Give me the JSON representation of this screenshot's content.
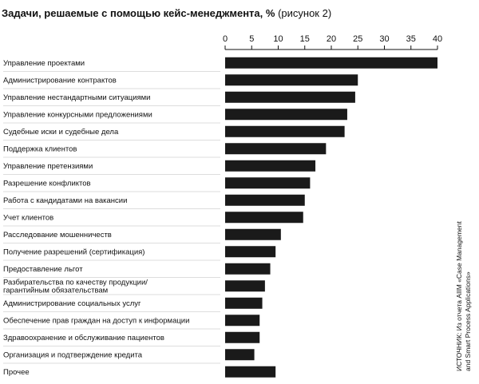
{
  "chart_data": {
    "type": "bar",
    "orientation": "horizontal",
    "title": "Задачи, решаемые с помощью кейс-менеджмента, %",
    "subtitle": "(рисунок 2)",
    "xlim": [
      0,
      40
    ],
    "ticks": [
      0,
      5,
      10,
      15,
      20,
      25,
      30,
      35,
      40
    ],
    "categories": [
      [
        "Управление проектами"
      ],
      [
        "Администрирование контрактов"
      ],
      [
        "Управление нестандартными ситуациями"
      ],
      [
        "Управление конкурсными предложениями"
      ],
      [
        "Судебные иски и судебные дела"
      ],
      [
        "Поддержка клиентов"
      ],
      [
        "Управление претензиями"
      ],
      [
        "Разрешение конфликтов"
      ],
      [
        "Работа с кандидатами на вакансии"
      ],
      [
        "Учет клиентов"
      ],
      [
        "Расследование мошенничеств"
      ],
      [
        "Получение разрешений (сертификация)"
      ],
      [
        "Предоставление льгот"
      ],
      [
        "Разбирательства по качеству продукции/",
        "гарантийным обязательствам"
      ],
      [
        "Администрирование социальных услуг"
      ],
      [
        "Обеспечение прав граждан на доступ к информации"
      ],
      [
        "Здравоохранение и обслуживание пациентов"
      ],
      [
        "Организация и подтверждение кредита"
      ],
      [
        "Прочее"
      ]
    ],
    "values": [
      40,
      25,
      24.5,
      23,
      22.5,
      19,
      17,
      16,
      15,
      14.7,
      10.5,
      9.5,
      8.5,
      7.5,
      7,
      6.5,
      6.5,
      5.5,
      9.5
    ],
    "grid": false,
    "bar_color": "#1a1a1a"
  },
  "source_lines": [
    "ИСТОЧНИК: Из отчета AIIM «Case Management",
    "and Smart Process Applications»"
  ]
}
